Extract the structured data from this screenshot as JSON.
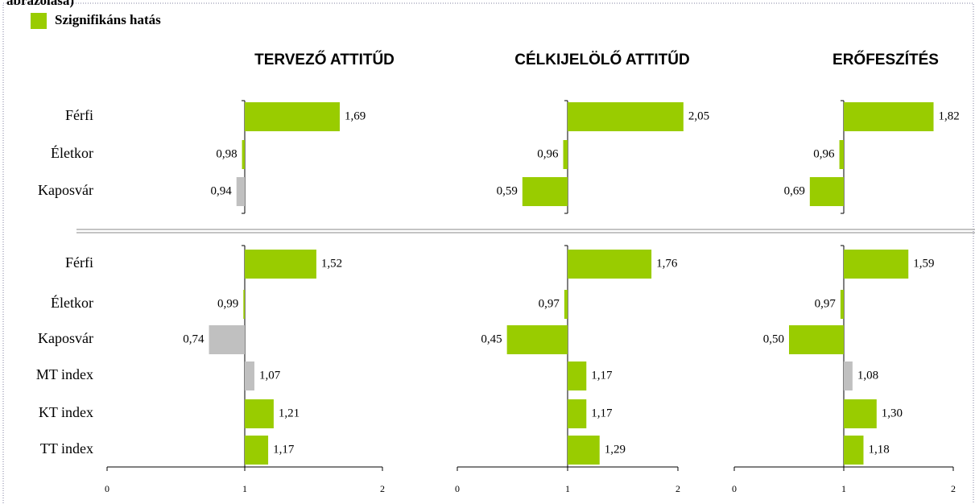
{
  "title_fragment": "ábrázolása)",
  "legend": {
    "label": "Szignifikáns hatás",
    "color": "#99cc00"
  },
  "row_groups": [
    [
      "Férfi",
      "Életkor",
      "Kaposvár"
    ],
    [
      "Férfi",
      "Életkor",
      "Kaposvár",
      "MT index",
      "KT index",
      "TT index"
    ]
  ],
  "chart_data": [
    {
      "type": "bar",
      "orientation": "horizontal",
      "title": "TERVEZŐ ATTITŰD",
      "xlim": [
        0,
        2
      ],
      "xticks": [
        0,
        1,
        2
      ],
      "baseline": 1,
      "values": [
        [
          1.69,
          0.98,
          0.94
        ],
        [
          1.52,
          0.99,
          0.74,
          1.07,
          1.21,
          1.17
        ]
      ],
      "value_labels": [
        [
          "1,69",
          "0,98",
          "0,94"
        ],
        [
          "1,52",
          "0,99",
          "0,74",
          "1,07",
          "1,21",
          "1,17"
        ]
      ],
      "colors": [
        [
          "#99cc00",
          "#99cc00",
          "#c0c0c0"
        ],
        [
          "#99cc00",
          "#99cc00",
          "#c0c0c0",
          "#c0c0c0",
          "#99cc00",
          "#99cc00"
        ]
      ]
    },
    {
      "type": "bar",
      "orientation": "horizontal",
      "title": "CÉLKIJELÖLŐ ATTITŰD",
      "xlim": [
        0,
        2
      ],
      "xticks": [
        0,
        1,
        2
      ],
      "baseline": 1,
      "values": [
        [
          2.05,
          0.96,
          0.59
        ],
        [
          1.76,
          0.97,
          0.45,
          1.17,
          1.17,
          1.29
        ]
      ],
      "value_labels": [
        [
          "2,05",
          "0,96",
          "0,59"
        ],
        [
          "1,76",
          "0,97",
          "0,45",
          "1,17",
          "1,17",
          "1,29"
        ]
      ],
      "colors": [
        [
          "#99cc00",
          "#99cc00",
          "#99cc00"
        ],
        [
          "#99cc00",
          "#99cc00",
          "#99cc00",
          "#99cc00",
          "#99cc00",
          "#99cc00"
        ]
      ]
    },
    {
      "type": "bar",
      "orientation": "horizontal",
      "title": "ERŐFESZÍTÉS",
      "xlim": [
        0,
        2
      ],
      "xticks": [
        0,
        1,
        2
      ],
      "baseline": 1,
      "values": [
        [
          1.82,
          0.96,
          0.69
        ],
        [
          1.59,
          0.97,
          0.5,
          1.08,
          1.3,
          1.18
        ]
      ],
      "value_labels": [
        [
          "1,82",
          "0,96",
          "0,69"
        ],
        [
          "1,59",
          "0,97",
          "0,50",
          "1,08",
          "1,30",
          "1,18"
        ]
      ],
      "colors": [
        [
          "#99cc00",
          "#99cc00",
          "#99cc00"
        ],
        [
          "#99cc00",
          "#99cc00",
          "#99cc00",
          "#c0c0c0",
          "#99cc00",
          "#99cc00"
        ]
      ]
    }
  ]
}
